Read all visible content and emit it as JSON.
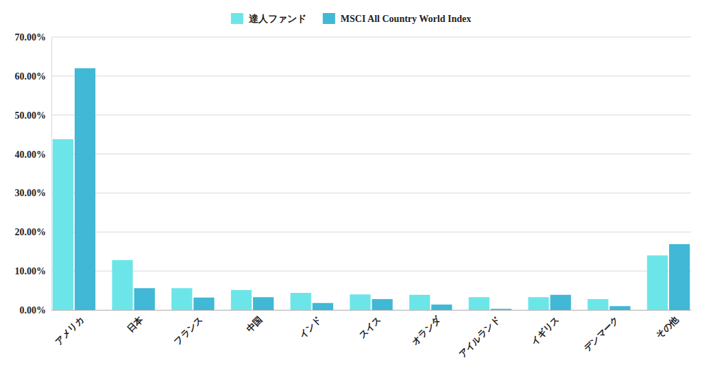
{
  "chart_data": {
    "type": "bar",
    "categories": [
      "アメリカ",
      "日本",
      "フランス",
      "中国",
      "インド",
      "スイス",
      "オランダ",
      "アイルランド",
      "イギリス",
      "デンマーク",
      "その他"
    ],
    "series": [
      {
        "name": "達人ファンド",
        "color": "#6ce5e8",
        "values": [
          43.8,
          12.8,
          5.6,
          5.1,
          4.4,
          4.0,
          3.9,
          3.3,
          3.3,
          2.8,
          14.0
        ]
      },
      {
        "name": "MSCI All Country World Index",
        "color": "#41b8d5",
        "values": [
          62.0,
          5.6,
          3.2,
          3.3,
          1.8,
          2.8,
          1.4,
          0.3,
          3.9,
          1.0,
          16.9
        ]
      }
    ],
    "ylim": [
      0,
      70
    ],
    "yticks": [
      {
        "value": 0,
        "label": "0.00%"
      },
      {
        "value": 10,
        "label": "10.00%"
      },
      {
        "value": 20,
        "label": "20.00%"
      },
      {
        "value": 30,
        "label": "30.00%"
      },
      {
        "value": 40,
        "label": "40.00%"
      },
      {
        "value": 50,
        "label": "50.00%"
      },
      {
        "value": 60,
        "label": "60.00%"
      },
      {
        "value": 70,
        "label": "70.00%"
      }
    ],
    "grid": true,
    "legend": "top"
  }
}
